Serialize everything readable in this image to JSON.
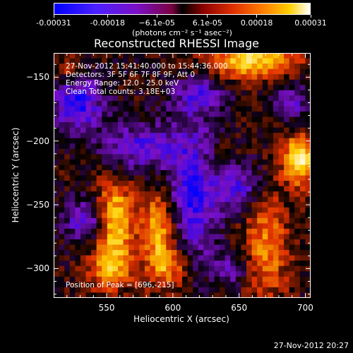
{
  "colorbar": {
    "tick_labels": [
      "-0.00031",
      "-0.00018",
      "−6.1e-05",
      "6.1e-05",
      "0.00018",
      "0.00031"
    ],
    "tick_values": [
      -0.00031,
      -0.00018,
      -6.1e-05,
      6.1e-05,
      0.00018,
      0.00031
    ],
    "range": [
      -0.00031,
      0.00031
    ],
    "units": "(photons cm⁻² s⁻¹ asec⁻²)"
  },
  "info": {
    "time": "27-Nov-2012 15:41:40.000 to 15:44:36.000",
    "detectors": "Detectors: 3F 5F 6F 7F 8F 9F, Att 0",
    "energy": "Energy Range: 12.0 - 25.0 keV",
    "method": "Clean     Total counts: 3.18E+03",
    "peak": "Position of Peak = [696,-215]"
  },
  "footer": {
    "date": "27-Nov-2012 20:27"
  },
  "chart_data": {
    "type": "heatmap",
    "title": "Reconstructed RHESSI Image",
    "xlabel": "Heliocentric X (arcsec)",
    "ylabel": "Heliocentric Y (arcsec)",
    "xlim": [
      510,
      704
    ],
    "ylim": [
      -323,
      -131
    ],
    "x_ticks": [
      550,
      600,
      650,
      700
    ],
    "y_ticks": [
      -300,
      -250,
      -200,
      -150
    ],
    "x_tick_labels": [
      "550",
      "600",
      "650",
      "700"
    ],
    "y_tick_labels": [
      "−300",
      "−250",
      "−200",
      "−150"
    ],
    "peak": [
      696,
      -215
    ],
    "colormap": [
      "#0000ff",
      "#7a10c8",
      "#000000",
      "#e03000",
      "#ffd000",
      "#ffffff"
    ],
    "sources": [
      {
        "x": 556,
        "y": -262,
        "amp": 0.85,
        "sx": 10,
        "sy": 22
      },
      {
        "x": 552,
        "y": -300,
        "amp": 0.6,
        "sx": 12,
        "sy": 12
      },
      {
        "x": 590,
        "y": -272,
        "amp": 0.75,
        "sx": 9,
        "sy": 24
      },
      {
        "x": 600,
        "y": -300,
        "amp": 0.45,
        "sx": 10,
        "sy": 10
      },
      {
        "x": 660,
        "y": -136,
        "amp": 0.85,
        "sx": 22,
        "sy": 10
      },
      {
        "x": 696,
        "y": -215,
        "amp": 1.0,
        "sx": 9,
        "sy": 13
      },
      {
        "x": 670,
        "y": -283,
        "amp": 0.55,
        "sx": 12,
        "sy": 30
      },
      {
        "x": 520,
        "y": -145,
        "amp": 0.35,
        "sx": 8,
        "sy": 8
      },
      {
        "x": 635,
        "y": -215,
        "amp": 0.2,
        "sx": 10,
        "sy": 10
      },
      {
        "x": 528,
        "y": -170,
        "amp": -0.75,
        "sx": 14,
        "sy": 16
      },
      {
        "x": 535,
        "y": -262,
        "amp": -0.6,
        "sx": 12,
        "sy": 12
      },
      {
        "x": 575,
        "y": -205,
        "amp": -0.55,
        "sx": 20,
        "sy": 14
      },
      {
        "x": 615,
        "y": -240,
        "amp": -0.7,
        "sx": 14,
        "sy": 38
      },
      {
        "x": 620,
        "y": -165,
        "amp": -0.5,
        "sx": 14,
        "sy": 10
      },
      {
        "x": 690,
        "y": -170,
        "amp": -0.45,
        "sx": 10,
        "sy": 10
      },
      {
        "x": 650,
        "y": -235,
        "amp": -0.55,
        "sx": 12,
        "sy": 14
      },
      {
        "x": 645,
        "y": -300,
        "amp": -0.4,
        "sx": 10,
        "sy": 10
      }
    ]
  }
}
